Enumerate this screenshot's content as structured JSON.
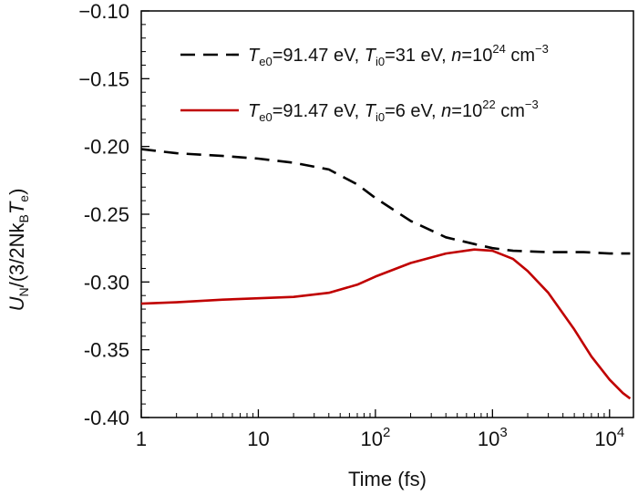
{
  "chart_data": {
    "type": "line",
    "xscale": "log",
    "xlim": [
      1,
      16000
    ],
    "ylim": [
      -0.4,
      -0.1
    ],
    "xlabel": "Time (fs)",
    "ylabel": {
      "main": "U",
      "sub": "N",
      "rest": "/(3/2Nk",
      "sub2": "B",
      "rest2": "T",
      "sub3": "e",
      "close": ")"
    },
    "x_ticks": [
      {
        "value": 1,
        "base": "1",
        "exp": ""
      },
      {
        "value": 10,
        "base": "10",
        "exp": ""
      },
      {
        "value": 100,
        "base": "10",
        "exp": "2"
      },
      {
        "value": 1000,
        "base": "10",
        "exp": "3"
      },
      {
        "value": 10000,
        "base": "10",
        "exp": "4"
      }
    ],
    "y_ticks": [
      {
        "value": -0.1,
        "label": "−0.10"
      },
      {
        "value": -0.15,
        "label": "−0.15"
      },
      {
        "value": -0.2,
        "label": "-0.20"
      },
      {
        "value": -0.25,
        "label": "-0.25"
      },
      {
        "value": -0.3,
        "label": "-0.30"
      },
      {
        "value": -0.35,
        "label": "-0.35"
      },
      {
        "value": -0.4,
        "label": "-0.40"
      }
    ],
    "legend_position": "top-right",
    "series": [
      {
        "color": "#000000",
        "dash": "dashed",
        "legend": {
          "t1": "T",
          "t1sub": "e0",
          "t1val": "=91.47 eV, ",
          "t2": "T",
          "t2sub": "i0",
          "t2val": "=31 eV, ",
          "n": "n",
          "nval": "=10",
          "nexp": "24",
          "unit": " cm",
          "unitexp": "−3"
        },
        "points": [
          [
            1,
            -0.202
          ],
          [
            2,
            -0.205
          ],
          [
            5,
            -0.207
          ],
          [
            10,
            -0.209
          ],
          [
            20,
            -0.212
          ],
          [
            40,
            -0.217
          ],
          [
            70,
            -0.228
          ],
          [
            100,
            -0.238
          ],
          [
            200,
            -0.255
          ],
          [
            400,
            -0.267
          ],
          [
            700,
            -0.272
          ],
          [
            1000,
            -0.275
          ],
          [
            1500,
            -0.277
          ],
          [
            3000,
            -0.278
          ],
          [
            6000,
            -0.278
          ],
          [
            10000,
            -0.279
          ],
          [
            15000,
            -0.279
          ]
        ]
      },
      {
        "color": "#c00000",
        "dash": "solid",
        "legend": {
          "t1": "T",
          "t1sub": "e0",
          "t1val": "=91.47 eV, ",
          "t2": "T",
          "t2sub": "i0",
          "t2val": "=6 eV, ",
          "n": "n",
          "nval": "=10",
          "nexp": "22",
          "unit": " cm",
          "unitexp": "−3"
        },
        "points": [
          [
            1,
            -0.316
          ],
          [
            2,
            -0.315
          ],
          [
            5,
            -0.313
          ],
          [
            10,
            -0.312
          ],
          [
            20,
            -0.311
          ],
          [
            40,
            -0.308
          ],
          [
            70,
            -0.302
          ],
          [
            100,
            -0.296
          ],
          [
            200,
            -0.286
          ],
          [
            400,
            -0.279
          ],
          [
            700,
            -0.276
          ],
          [
            1000,
            -0.277
          ],
          [
            1500,
            -0.283
          ],
          [
            2000,
            -0.292
          ],
          [
            3000,
            -0.308
          ],
          [
            5000,
            -0.335
          ],
          [
            7000,
            -0.355
          ],
          [
            10000,
            -0.372
          ],
          [
            13000,
            -0.382
          ],
          [
            15000,
            -0.386
          ]
        ]
      }
    ]
  }
}
